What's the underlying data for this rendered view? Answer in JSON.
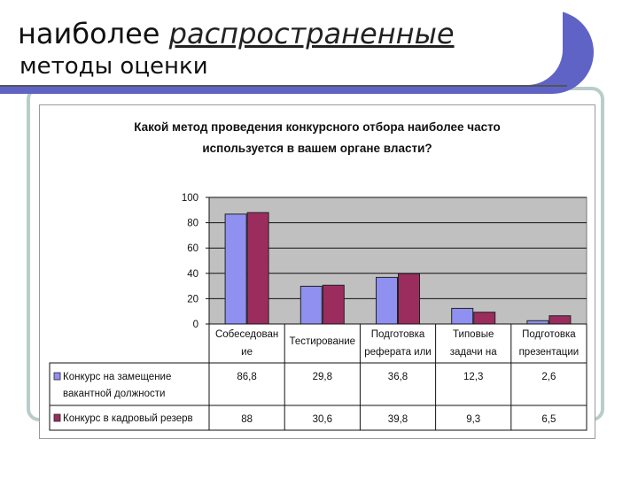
{
  "slide": {
    "title_plain": "наиболее ",
    "title_italic": "распространенные",
    "subtitle": "методы оценки"
  },
  "colors": {
    "series1": "#8f90f0",
    "series2": "#9a2d5e",
    "plot_bg": "#c0c0c0",
    "band": "#5f63c6"
  },
  "chart_data": {
    "type": "bar",
    "title_lines": [
      "Какой метод проведения конкурсного отбора наиболее часто",
      "используется в вашем органе власти?"
    ],
    "categories": [
      [
        "Собеседован",
        "ие"
      ],
      [
        "Тестирование"
      ],
      [
        "Подготовка",
        "реферата или"
      ],
      [
        "Типовые",
        "задачи на"
      ],
      [
        "Подготовка",
        "презентации"
      ]
    ],
    "series": [
      {
        "name_lines": [
          "Конкурс на замещение",
          "вакантной должности"
        ],
        "values": [
          86.8,
          29.8,
          36.8,
          12.3,
          2.6
        ],
        "labels": [
          "86,8",
          "29,8",
          "36,8",
          "12,3",
          "2,6"
        ]
      },
      {
        "name_lines": [
          "Конкурс в кадровый резерв"
        ],
        "values": [
          88,
          30.6,
          39.8,
          9.3,
          6.5
        ],
        "labels": [
          "88",
          "30,6",
          "39,8",
          "9,3",
          "6,5"
        ]
      }
    ],
    "ylim": [
      0,
      100
    ],
    "yticks": [
      "0",
      "20",
      "40",
      "60",
      "80",
      "100"
    ],
    "grid": true,
    "legend": "data-table"
  }
}
